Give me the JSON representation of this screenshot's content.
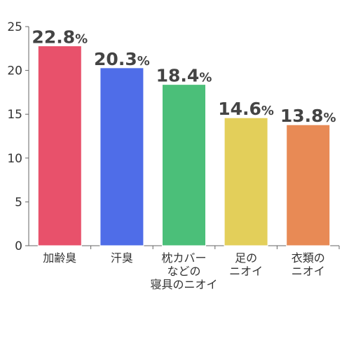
{
  "chart_data": {
    "type": "bar",
    "title": "",
    "xlabel": "",
    "ylabel": "",
    "ylim": [
      0,
      25
    ],
    "yticks": [
      0,
      5,
      10,
      15,
      20,
      25
    ],
    "grid": false,
    "legend": "none",
    "value_unit": "%",
    "categories": [
      [
        "加齢臭"
      ],
      [
        "汗臭"
      ],
      [
        "枕カバー",
        "などの",
        "寝具のニオイ"
      ],
      [
        "足の",
        "ニオイ"
      ],
      [
        "衣類の",
        "ニオイ"
      ]
    ],
    "values": [
      22.8,
      20.3,
      18.4,
      14.6,
      13.8
    ],
    "value_labels": [
      "22.8",
      "20.3",
      "18.4",
      "14.6",
      "13.8"
    ],
    "colors": [
      "#e8516b",
      "#4f6de8",
      "#4bbf79",
      "#e3cf5a",
      "#e88a55"
    ]
  }
}
